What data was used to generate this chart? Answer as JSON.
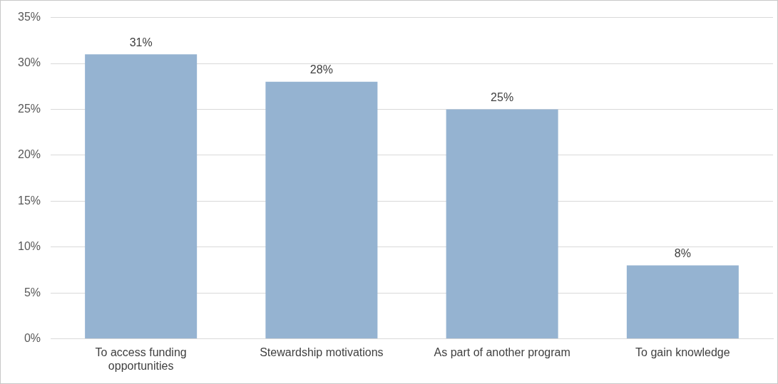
{
  "chart_data": {
    "type": "bar",
    "categories": [
      "To access funding opportunities",
      "Stewardship motivations",
      "As part of another program",
      "To gain knowledge"
    ],
    "values": [
      31,
      28,
      25,
      8
    ],
    "color": "#95b3d1",
    "value_labels": [
      "31%",
      "28%",
      "25%",
      "8%"
    ],
    "ylim": [
      0,
      35
    ],
    "yticks": [
      {
        "value": 0,
        "label": "0%"
      },
      {
        "value": 5,
        "label": "5%"
      },
      {
        "value": 10,
        "label": "10%"
      },
      {
        "value": 15,
        "label": "15%"
      },
      {
        "value": 20,
        "label": "20%"
      },
      {
        "value": 25,
        "label": "25%"
      },
      {
        "value": 30,
        "label": "30%"
      },
      {
        "value": 35,
        "label": "35%"
      }
    ],
    "grid": "y",
    "legend": false
  }
}
